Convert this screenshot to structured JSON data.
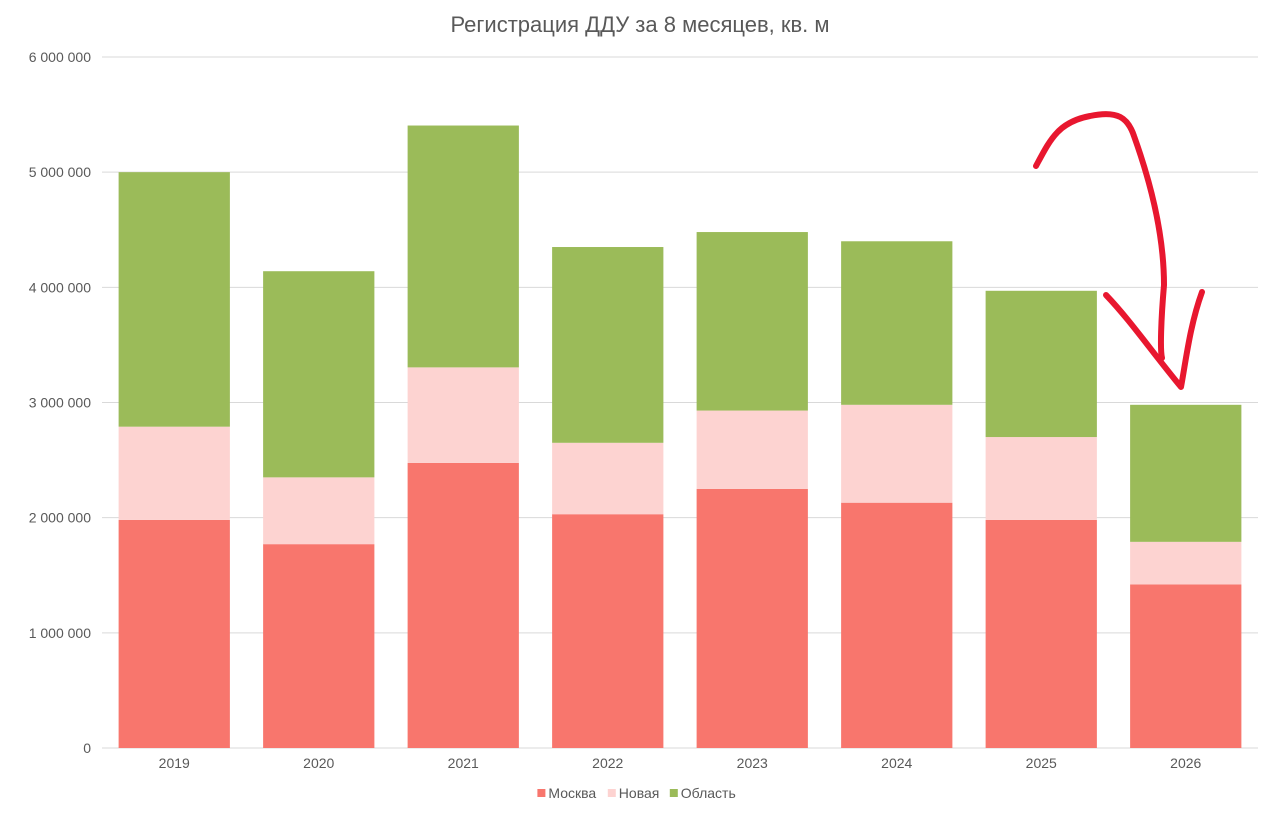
{
  "chart_data": {
    "type": "bar",
    "stacked": true,
    "title": "Регистрация ДДУ за 8 месяцев, кв. м",
    "xlabel": "",
    "ylabel": "",
    "categories": [
      "2019",
      "2020",
      "2021",
      "2022",
      "2023",
      "2024",
      "2025",
      "2026"
    ],
    "series": [
      {
        "name": "Москва",
        "color": "#f8766d",
        "values": [
          1980000,
          1770000,
          2475000,
          2030000,
          2250000,
          2130000,
          1980000,
          1420000
        ]
      },
      {
        "name": "Новая",
        "color": "#fdd3d1",
        "values": [
          810000,
          580000,
          830000,
          620000,
          680000,
          850000,
          720000,
          370000
        ]
      },
      {
        "name": "Область",
        "color": "#9bbb59",
        "values": [
          2210000,
          1790000,
          2100000,
          1700000,
          1550000,
          1420000,
          1270000,
          1190000
        ]
      }
    ],
    "ylim": [
      0,
      6000000
    ],
    "yticks": [
      0,
      1000000,
      2000000,
      3000000,
      4000000,
      5000000,
      6000000
    ],
    "ytick_labels": [
      "0",
      "1 000 000",
      "2 000 000",
      "3 000 000",
      "4 000 000",
      "5 000 000",
      "6 000 000"
    ],
    "grid": true,
    "legend": "bottom",
    "annotation": {
      "type": "hand-drawn-arrow",
      "color": "#e8172f",
      "from_category": "2025",
      "to_category": "2026"
    }
  }
}
